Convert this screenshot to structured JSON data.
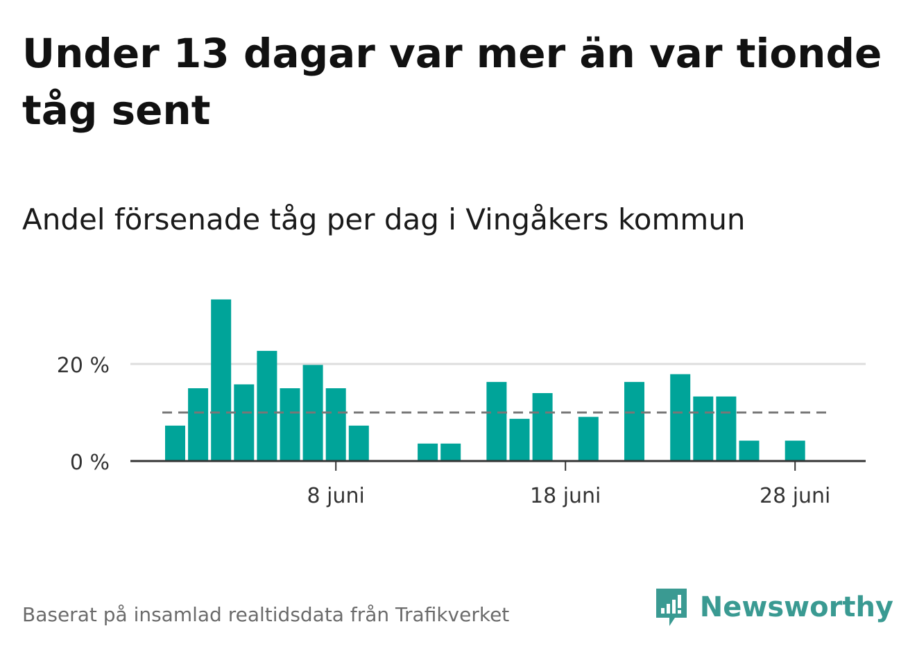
{
  "title": "Under 13 dagar var mer än var tionde tåg sent",
  "subtitle": "Andel försenade tåg per dag i Vingåkers kommun",
  "source": "Baserat på insamlad realtidsdata från Trafikverket",
  "brand": "Newsworthy",
  "colors": {
    "bar": "#00a499",
    "reference_line": "#777777",
    "grid": "#dddddd",
    "axis": "#333333",
    "brand": "#3a9a92"
  },
  "chart_data": {
    "type": "bar",
    "x": [
      "2024-06-01",
      "2024-06-02",
      "2024-06-03",
      "2024-06-04",
      "2024-06-05",
      "2024-06-06",
      "2024-06-07",
      "2024-06-08",
      "2024-06-09",
      "2024-06-10",
      "2024-06-11",
      "2024-06-12",
      "2024-06-13",
      "2024-06-14",
      "2024-06-15",
      "2024-06-16",
      "2024-06-17",
      "2024-06-18",
      "2024-06-19",
      "2024-06-20",
      "2024-06-21",
      "2024-06-22",
      "2024-06-23",
      "2024-06-24",
      "2024-06-25",
      "2024-06-26",
      "2024-06-27",
      "2024-06-28",
      "2024-06-29"
    ],
    "values": [
      7.3,
      15,
      33.3,
      15.8,
      22.7,
      15,
      19.8,
      15,
      7.3,
      0,
      0,
      3.6,
      3.6,
      0,
      16.3,
      8.7,
      14,
      0,
      9.1,
      0,
      16.3,
      0,
      17.9,
      13.3,
      13.3,
      4.2,
      0,
      4.2,
      0
    ],
    "reference_line": 10,
    "ylim": [
      0,
      36
    ],
    "yticks": [
      {
        "value": 0,
        "label": "0 %"
      },
      {
        "value": 20,
        "label": "20 %"
      }
    ],
    "xticks": [
      {
        "x": "2024-06-08",
        "label": "8 juni"
      },
      {
        "x": "2024-06-18",
        "label": "18 juni"
      },
      {
        "x": "2024-06-28",
        "label": "28 juni"
      }
    ],
    "grid": true
  }
}
